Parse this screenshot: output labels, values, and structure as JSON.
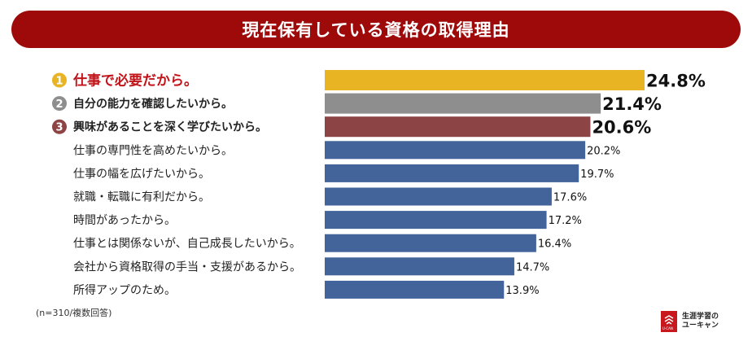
{
  "chart_data": {
    "type": "bar",
    "orientation": "horizontal",
    "title": "現在保有している資格の取得理由",
    "categories": [
      "仕事で必要だから。",
      "自分の能力を確認したいから。",
      "興味があることを深く学びたいから。",
      "仕事の専門性を高めたいから。",
      "仕事の幅を広げたいから。",
      "就職・転職に有利だから。",
      "時間があったから。",
      "仕事とは関係ないが、自己成長したいから。",
      "会社から資格取得の手当・支援があるから。",
      "所得アップのため。"
    ],
    "values": [
      24.8,
      21.4,
      20.6,
      20.2,
      19.7,
      17.6,
      17.2,
      16.4,
      14.7,
      13.9
    ],
    "value_labels": [
      "24.8%",
      "21.4%",
      "20.6%",
      "20.2%",
      "19.7%",
      "17.6%",
      "17.2%",
      "16.4%",
      "14.7%",
      "13.9%"
    ],
    "ranks": [
      "1",
      "2",
      "3"
    ],
    "colors": [
      "#e8b424",
      "#8e8e8e",
      "#8c4444",
      "#43649a",
      "#43649a",
      "#43649a",
      "#43649a",
      "#43649a",
      "#43649a",
      "#43649a"
    ],
    "label_colors": [
      "#c0141a",
      "#222222",
      "#222222",
      "#222222",
      "#222222",
      "#222222",
      "#222222",
      "#222222",
      "#222222",
      "#222222"
    ],
    "badge_colors": [
      "#e8b424",
      "#8e8e8e",
      "#8c4444"
    ],
    "title_bar_color": "#9e0a0a",
    "xlim": [
      0,
      24.8
    ],
    "grid": false,
    "legend": "none"
  },
  "note": "(n=310/複数回答)",
  "logo": {
    "line1": "生涯学習の",
    "line2": "ユーキャン",
    "sub": "U-CAN",
    "icon": "u-can-logo-icon"
  }
}
